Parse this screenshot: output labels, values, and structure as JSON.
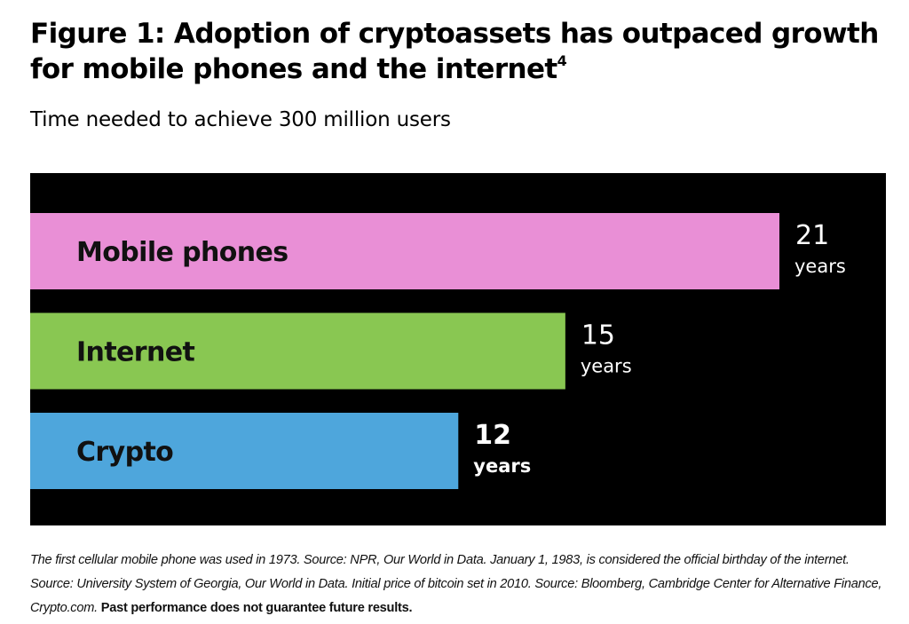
{
  "header": {
    "title": "Figure 1: Adoption of cryptoassets has outpaced growth for mobile phones and the internet",
    "title_footnote_ref": "4",
    "subtitle": "Time needed to achieve 300 million users"
  },
  "chart_data": {
    "type": "bar",
    "orientation": "horizontal",
    "title": "Time needed to achieve 300 million users",
    "xlabel": "",
    "ylabel": "",
    "unit": "years",
    "categories": [
      "Mobile phones",
      "Internet",
      "Crypto"
    ],
    "values": [
      21,
      15,
      12
    ],
    "value_labels": [
      {
        "number": "21",
        "unit": "years"
      },
      {
        "number": "15",
        "unit": "years"
      },
      {
        "number": "12",
        "unit": "years"
      }
    ],
    "colors": [
      "#e98fd6",
      "#89c752",
      "#4ea6dc"
    ],
    "background": "#000000",
    "label_color": "#111111",
    "value_label_color": "#ffffff",
    "xlim": [
      0,
      21
    ],
    "grid": false,
    "legend": "none"
  },
  "footnote": {
    "text": "The first cellular mobile phone was used in 1973. Source: NPR, Our World in Data. January 1, 1983, is considered the official birthday of the internet. Source: University System of Georgia, Our World in Data. Initial price of bitcoin set in 2010. Source: Bloomberg, Cambridge Center for Alternative Finance, Crypto.com.",
    "disclaimer": "Past performance does not guarantee future results."
  }
}
